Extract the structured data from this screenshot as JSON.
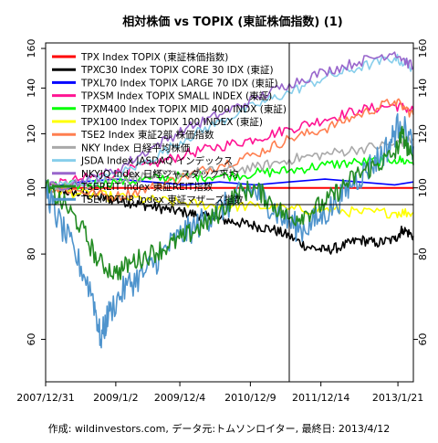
{
  "chart_data": {
    "type": "line",
    "title": "相対株価 vs TOPIX (東証株価指数) (1)",
    "caption": "作成: wildinvestors.com, データ元:トムソンロイター, 最終日: 2013/4/12",
    "x_tick_labels": [
      "2007/12/31",
      "2009/1/2",
      "2009/12/4",
      "2010/12/9",
      "2011/12/14",
      "2013/1/21"
    ],
    "x_tick_dates": [
      "2007-12-31",
      "2009-01-02",
      "2009-12-04",
      "2010-12-09",
      "2011-12-14",
      "2013-01-21"
    ],
    "xlim": [
      "2007-12-31",
      "2013-04-12"
    ],
    "y_scale": "log",
    "ylim": [
      52,
      163
    ],
    "y_ticks": [
      60,
      80,
      100,
      120,
      140,
      160
    ],
    "reference_lines": {
      "horizontal": 94.5,
      "vertical_date": "2011-07-01"
    },
    "legend_position": "top-left",
    "series": [
      {
        "name": "TPX Index TOPIX (東証株価指数)",
        "color": "#ff0000",
        "x": [
          "2007-12-31",
          "2013-04-12"
        ],
        "values": [
          100,
          100
        ]
      },
      {
        "name": "TPXC30 Index TOPIX CORE 30 IDX (東証)",
        "color": "#000000",
        "x": [
          "2007-12-31",
          "2008-04-01",
          "2008-07-01",
          "2008-10-01",
          "2009-01-02",
          "2009-04-01",
          "2009-07-01",
          "2009-10-01",
          "2010-01-04",
          "2010-04-01",
          "2010-07-01",
          "2010-10-01",
          "2011-01-04",
          "2011-04-01",
          "2011-07-01",
          "2011-10-03",
          "2012-01-04",
          "2012-04-02",
          "2012-07-02",
          "2012-10-01",
          "2013-01-04",
          "2013-02-15",
          "2013-04-12"
        ],
        "values": [
          100,
          99,
          98,
          97,
          96,
          95,
          94,
          93,
          92,
          91,
          90,
          89,
          88,
          87,
          85,
          82,
          81,
          82,
          84,
          83,
          84,
          87,
          85
        ]
      },
      {
        "name": "TPXL70 Index TOPIX LARGE 70 IDX (東証)",
        "color": "#0000ff",
        "x": [
          "2007-12-31",
          "2008-07-01",
          "2009-01-02",
          "2009-07-01",
          "2010-01-04",
          "2010-07-01",
          "2011-01-04",
          "2011-07-01",
          "2012-01-04",
          "2012-07-02",
          "2013-01-04",
          "2013-04-12"
        ],
        "values": [
          100,
          102,
          103,
          102,
          101,
          102,
          101,
          102,
          103,
          102,
          101,
          102
        ]
      },
      {
        "name": "TPXSM Index TOPIX SMALL INDEX (東証)",
        "color": "#ff1493",
        "x": [
          "2007-12-31",
          "2008-07-01",
          "2009-01-02",
          "2009-07-01",
          "2010-01-04",
          "2010-07-01",
          "2011-01-04",
          "2011-07-01",
          "2012-01-04",
          "2012-07-02",
          "2013-01-04",
          "2013-04-12"
        ],
        "values": [
          100,
          103,
          105,
          108,
          112,
          115,
          118,
          122,
          126,
          130,
          132,
          130
        ]
      },
      {
        "name": "TPXM400 Index TOPIX MID 400 INDX (東証)",
        "color": "#00ff00",
        "x": [
          "2007-12-31",
          "2008-07-01",
          "2009-01-02",
          "2009-07-01",
          "2010-01-04",
          "2010-07-01",
          "2011-01-04",
          "2011-07-01",
          "2012-01-04",
          "2012-07-02",
          "2013-01-04",
          "2013-04-12"
        ],
        "values": [
          100,
          101,
          102,
          103,
          104,
          104,
          105,
          106,
          108,
          109,
          110,
          109
        ]
      },
      {
        "name": "TPX100 Index TOPIX 100 INDEX (東証)",
        "color": "#ffff00",
        "x": [
          "2007-12-31",
          "2008-07-01",
          "2009-01-02",
          "2009-07-01",
          "2010-01-04",
          "2010-07-01",
          "2011-01-04",
          "2011-07-01",
          "2012-01-04",
          "2012-07-02",
          "2013-01-04",
          "2013-04-12"
        ],
        "values": [
          100,
          98,
          97,
          96,
          95,
          94,
          94,
          93,
          93,
          92,
          92,
          92
        ]
      },
      {
        "name": "TSE2 Index 東証2部 株価指数",
        "color": "#ff7f50",
        "x": [
          "2007-12-31",
          "2008-07-01",
          "2009-01-02",
          "2009-07-01",
          "2010-01-04",
          "2010-07-01",
          "2011-01-04",
          "2011-07-01",
          "2012-01-04",
          "2012-07-02",
          "2013-01-04",
          "2013-04-12"
        ],
        "values": [
          100,
          99,
          97,
          100,
          104,
          108,
          112,
          118,
          122,
          128,
          134,
          128
        ]
      },
      {
        "name": "NKY Index 日経平均株価",
        "color": "#a9a9a9",
        "x": [
          "2007-12-31",
          "2008-07-01",
          "2009-01-02",
          "2009-07-01",
          "2010-01-04",
          "2010-07-01",
          "2011-01-04",
          "2011-07-01",
          "2012-01-04",
          "2012-07-02",
          "2013-01-04",
          "2013-04-12"
        ],
        "values": [
          100,
          101,
          103,
          104,
          105,
          106,
          107,
          110,
          112,
          114,
          116,
          118
        ]
      },
      {
        "name": "JSDA Index JASDAQ インデックス",
        "color": "#87ceeb",
        "x": [
          "2007-12-31",
          "2008-07-01",
          "2009-01-02",
          "2009-07-01",
          "2010-01-04",
          "2010-07-01",
          "2011-01-04",
          "2011-07-01",
          "2012-01-04",
          "2012-07-02",
          "2013-01-04",
          "2013-04-12"
        ],
        "values": [
          100,
          102,
          104,
          110,
          118,
          125,
          132,
          138,
          145,
          150,
          155,
          150
        ]
      },
      {
        "name": "NKYJQ Index 日経ジャスダック平均",
        "color": "#9966cc",
        "x": [
          "2007-12-31",
          "2008-07-01",
          "2009-01-02",
          "2009-07-01",
          "2010-01-04",
          "2010-07-01",
          "2011-01-04",
          "2011-07-01",
          "2012-01-04",
          "2012-07-02",
          "2013-01-04",
          "2013-04-12"
        ],
        "values": [
          100,
          102,
          106,
          114,
          122,
          128,
          135,
          142,
          148,
          153,
          158,
          150
        ]
      },
      {
        "name": "TSEREIT Index 東証REIT指数",
        "color": "#228b22",
        "x": [
          "2007-12-31",
          "2008-04-01",
          "2008-07-01",
          "2008-10-01",
          "2009-01-02",
          "2009-04-01",
          "2009-07-01",
          "2009-10-01",
          "2010-01-04",
          "2010-04-01",
          "2010-07-01",
          "2010-10-01",
          "2011-01-04",
          "2011-04-01",
          "2011-07-01",
          "2011-10-03",
          "2012-01-04",
          "2012-04-02",
          "2012-07-02",
          "2012-10-01",
          "2013-01-04",
          "2013-02-15",
          "2013-04-12"
        ],
        "values": [
          100,
          95,
          88,
          78,
          75,
          78,
          80,
          82,
          85,
          88,
          92,
          98,
          100,
          95,
          90,
          92,
          95,
          100,
          105,
          108,
          112,
          120,
          108
        ]
      },
      {
        "name": "TSEMOTHR Index 東証マザーズ指数",
        "color": "#4f94cd",
        "x": [
          "2007-12-31",
          "2008-03-03",
          "2008-06-02",
          "2008-09-01",
          "2008-10-15",
          "2008-12-01",
          "2009-03-02",
          "2009-06-01",
          "2009-09-01",
          "2009-12-01",
          "2010-03-01",
          "2010-06-01",
          "2010-09-01",
          "2010-12-01",
          "2011-03-01",
          "2011-06-01",
          "2011-09-01",
          "2011-12-01",
          "2012-03-01",
          "2012-06-01",
          "2012-09-03",
          "2012-12-03",
          "2013-02-01",
          "2013-04-12"
        ],
        "values": [
          100,
          90,
          80,
          70,
          60,
          66,
          72,
          75,
          80,
          85,
          88,
          92,
          95,
          100,
          96,
          90,
          87,
          90,
          95,
          102,
          108,
          115,
          125,
          115
        ]
      }
    ]
  }
}
